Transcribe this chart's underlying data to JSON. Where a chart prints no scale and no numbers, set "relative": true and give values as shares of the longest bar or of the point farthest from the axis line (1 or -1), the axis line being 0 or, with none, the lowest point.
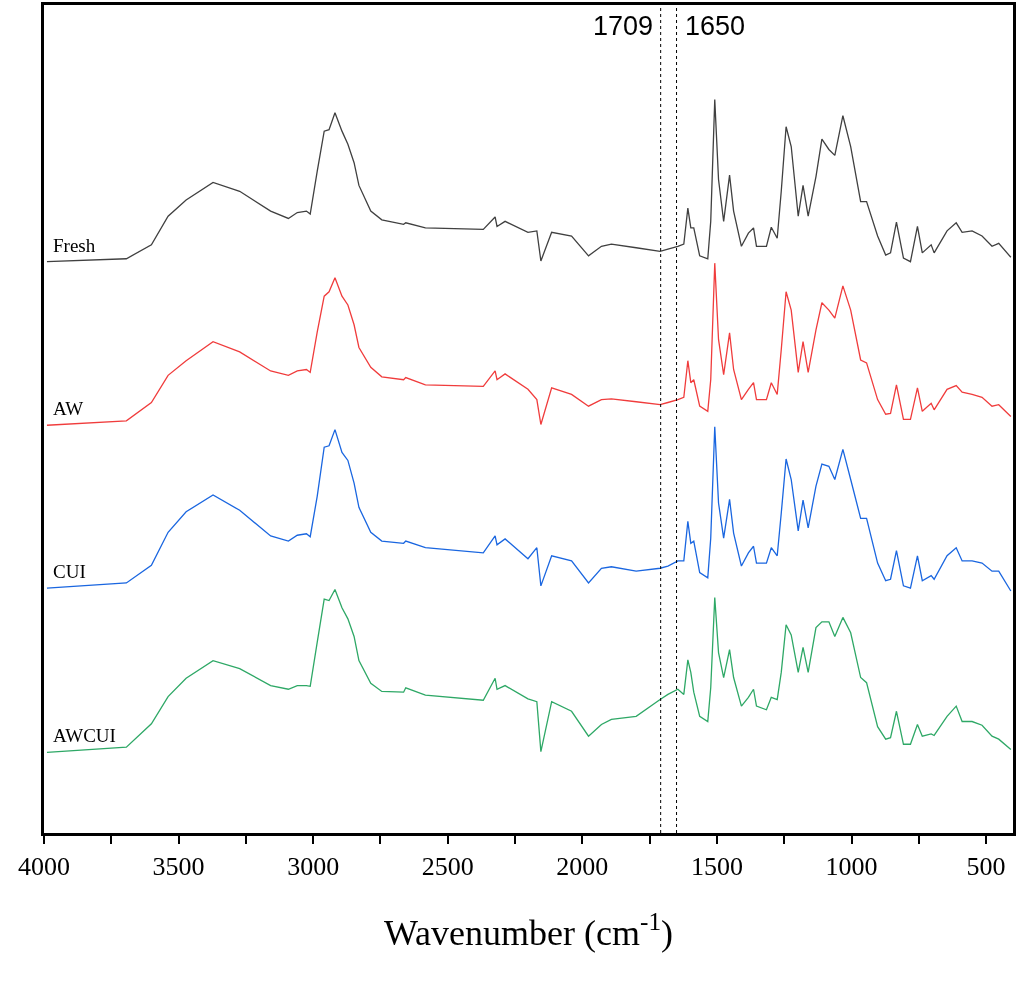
{
  "chart_data": {
    "type": "line",
    "relative": true,
    "xlabel": "Wavenumber (cm$^{-1}$)",
    "xlim": [
      4000,
      400
    ],
    "xticks": [
      4000,
      {
        "value": 3750,
        "label": null
      },
      3500,
      {
        "value": 3250,
        "label": null
      },
      3000,
      {
        "value": 2750,
        "label": null
      },
      2500,
      {
        "value": 2250,
        "label": null
      },
      2000,
      {
        "value": 1750,
        "label": null
      },
      1500,
      {
        "value": 1250,
        "label": null
      },
      1000,
      {
        "value": 750,
        "label": null
      },
      500
    ],
    "legend": false,
    "marker": "none",
    "line_style": "solid",
    "x": [
      3989,
      3694,
      3601,
      3539,
      3472,
      3372,
      3273,
      3158,
      3092,
      3059,
      3025,
      3011,
      2985,
      2959,
      2941,
      2919,
      2893,
      2871,
      2848,
      2830,
      2786,
      2745,
      2664,
      2656,
      2583,
      2368,
      2324,
      2317,
      2287,
      2202,
      2169,
      2154,
      2114,
      2040,
      1977,
      1929,
      1892,
      1800,
      1711,
      1682,
      1645,
      1623,
      1608,
      1597,
      1586,
      1564,
      1534,
      1523,
      1508,
      1494,
      1475,
      1453,
      1438,
      1409,
      1383,
      1364,
      1353,
      1316,
      1298,
      1276,
      1261,
      1243,
      1224,
      1198,
      1180,
      1161,
      1132,
      1110,
      1084,
      1062,
      1032,
      1003,
      966,
      944,
      903,
      873,
      855,
      833,
      807,
      781,
      755,
      737,
      704,
      693,
      645,
      611,
      589,
      552,
      515,
      478,
      453,
      408
    ],
    "series": [
      {
        "name": "Fresh",
        "color": "#404040",
        "values": [
          0.779,
          0.783,
          0.802,
          0.841,
          0.863,
          0.887,
          0.875,
          0.848,
          0.838,
          0.846,
          0.848,
          0.844,
          0.902,
          0.957,
          0.959,
          0.982,
          0.957,
          0.939,
          0.914,
          0.883,
          0.848,
          0.836,
          0.83,
          0.832,
          0.825,
          0.823,
          0.84,
          0.827,
          0.834,
          0.819,
          0.821,
          0.78,
          0.819,
          0.814,
          0.787,
          0.8,
          0.803,
          0.798,
          0.793,
          0.796,
          0.8,
          0.803,
          0.852,
          0.825,
          0.825,
          0.787,
          0.783,
          0.834,
          1.0,
          0.891,
          0.834,
          0.897,
          0.848,
          0.8,
          0.818,
          0.825,
          0.8,
          0.8,
          0.826,
          0.811,
          0.875,
          0.963,
          0.936,
          0.841,
          0.883,
          0.841,
          0.895,
          0.946,
          0.932,
          0.924,
          0.978,
          0.936,
          0.861,
          0.861,
          0.814,
          0.788,
          0.791,
          0.833,
          0.784,
          0.779,
          0.827,
          0.791,
          0.802,
          0.791,
          0.821,
          0.832,
          0.819,
          0.821,
          0.814,
          0.8,
          0.804,
          0.785
        ]
      },
      {
        "name": "AW",
        "color": "#f03c3c",
        "values": [
          0.556,
          0.562,
          0.587,
          0.624,
          0.644,
          0.67,
          0.656,
          0.63,
          0.624,
          0.63,
          0.632,
          0.628,
          0.683,
          0.732,
          0.738,
          0.757,
          0.732,
          0.72,
          0.693,
          0.662,
          0.635,
          0.622,
          0.618,
          0.621,
          0.611,
          0.609,
          0.63,
          0.618,
          0.626,
          0.605,
          0.591,
          0.557,
          0.607,
          0.598,
          0.582,
          0.591,
          0.592,
          0.588,
          0.584,
          0.587,
          0.591,
          0.594,
          0.644,
          0.614,
          0.618,
          0.582,
          0.575,
          0.618,
          0.777,
          0.673,
          0.625,
          0.682,
          0.632,
          0.591,
          0.605,
          0.614,
          0.591,
          0.591,
          0.614,
          0.598,
          0.659,
          0.738,
          0.713,
          0.628,
          0.67,
          0.628,
          0.686,
          0.723,
          0.713,
          0.702,
          0.746,
          0.713,
          0.645,
          0.641,
          0.591,
          0.571,
          0.572,
          0.611,
          0.564,
          0.564,
          0.607,
          0.575,
          0.586,
          0.577,
          0.605,
          0.61,
          0.601,
          0.598,
          0.594,
          0.582,
          0.584,
          0.568
        ]
      },
      {
        "name": "CUI",
        "color": "#1a66e0",
        "values": [
          0.334,
          0.341,
          0.365,
          0.41,
          0.438,
          0.461,
          0.44,
          0.405,
          0.398,
          0.406,
          0.408,
          0.404,
          0.459,
          0.526,
          0.528,
          0.55,
          0.519,
          0.508,
          0.477,
          0.444,
          0.41,
          0.398,
          0.395,
          0.398,
          0.389,
          0.382,
          0.405,
          0.393,
          0.401,
          0.374,
          0.389,
          0.337,
          0.378,
          0.371,
          0.341,
          0.361,
          0.363,
          0.357,
          0.361,
          0.364,
          0.371,
          0.371,
          0.425,
          0.395,
          0.398,
          0.355,
          0.348,
          0.402,
          0.554,
          0.45,
          0.402,
          0.455,
          0.409,
          0.364,
          0.382,
          0.391,
          0.368,
          0.368,
          0.389,
          0.378,
          0.436,
          0.51,
          0.482,
          0.412,
          0.454,
          0.416,
          0.473,
          0.503,
          0.5,
          0.482,
          0.523,
          0.482,
          0.429,
          0.429,
          0.368,
          0.344,
          0.346,
          0.385,
          0.337,
          0.334,
          0.378,
          0.344,
          0.351,
          0.346,
          0.378,
          0.389,
          0.371,
          0.371,
          0.368,
          0.357,
          0.357,
          0.33
        ]
      },
      {
        "name": "AWCUI",
        "color": "#2ea866",
        "values": [
          0.11,
          0.117,
          0.149,
          0.186,
          0.211,
          0.235,
          0.224,
          0.201,
          0.196,
          0.201,
          0.201,
          0.2,
          0.26,
          0.319,
          0.317,
          0.332,
          0.307,
          0.292,
          0.268,
          0.235,
          0.204,
          0.193,
          0.192,
          0.198,
          0.188,
          0.181,
          0.211,
          0.196,
          0.201,
          0.183,
          0.179,
          0.111,
          0.179,
          0.166,
          0.132,
          0.148,
          0.155,
          0.159,
          0.182,
          0.189,
          0.196,
          0.189,
          0.236,
          0.219,
          0.192,
          0.159,
          0.152,
          0.198,
          0.321,
          0.246,
          0.212,
          0.25,
          0.212,
          0.173,
          0.185,
          0.196,
          0.173,
          0.168,
          0.185,
          0.182,
          0.219,
          0.284,
          0.27,
          0.219,
          0.253,
          0.219,
          0.28,
          0.288,
          0.288,
          0.268,
          0.294,
          0.273,
          0.212,
          0.205,
          0.145,
          0.128,
          0.13,
          0.166,
          0.121,
          0.121,
          0.148,
          0.132,
          0.135,
          0.133,
          0.159,
          0.173,
          0.152,
          0.152,
          0.147,
          0.132,
          0.128,
          0.114
        ]
      }
    ],
    "ref_lines": [
      {
        "axis": "x",
        "value": 1709,
        "label": "1709",
        "color": "#000000",
        "line_style": "dotted"
      },
      {
        "axis": "x",
        "value": 1650,
        "label": "1650",
        "color": "#000000",
        "line_style": "dotted"
      }
    ]
  }
}
